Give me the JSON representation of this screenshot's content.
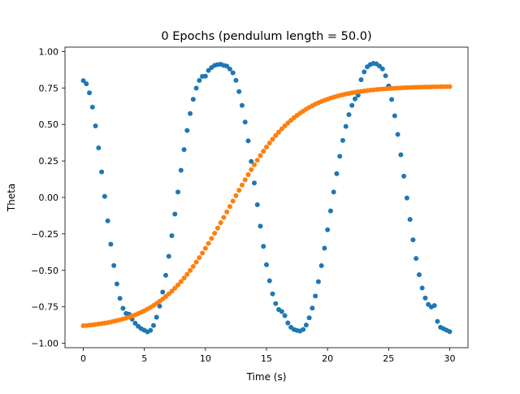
{
  "chart_data": {
    "type": "scatter",
    "title": "0 Epochs (pendulum length = 50.0)",
    "xlabel": "Time (s)",
    "ylabel": "Theta",
    "xlim": [
      -1.5,
      31.5
    ],
    "ylim": [
      -1.03,
      1.03
    ],
    "xticks": [
      0,
      5,
      10,
      15,
      20,
      25,
      30
    ],
    "xtick_labels": [
      "0",
      "5",
      "10",
      "15",
      "20",
      "25",
      "30"
    ],
    "yticks": [
      -1.0,
      -0.75,
      -0.5,
      -0.25,
      0.0,
      0.25,
      0.5,
      0.75,
      1.0
    ],
    "ytick_labels": [
      "−1.00",
      "−0.75",
      "−0.50",
      "−0.25",
      "0.00",
      "0.25",
      "0.50",
      "0.75",
      "1.00"
    ],
    "grid": false,
    "legend": "none",
    "series": [
      {
        "color": "#1f77b4",
        "x": [
          0.0,
          0.25,
          0.5,
          0.75,
          1.0,
          1.25,
          1.5,
          1.75,
          2.0,
          2.25,
          2.5,
          2.75,
          3.0,
          3.25,
          3.5,
          3.75,
          4.0,
          4.25,
          4.5,
          4.75,
          5.0,
          5.25,
          5.5,
          5.75,
          6.0,
          6.25,
          6.5,
          6.75,
          7.0,
          7.25,
          7.5,
          7.75,
          8.0,
          8.25,
          8.5,
          8.75,
          9.0,
          9.25,
          9.5,
          9.75,
          10.0,
          10.25,
          10.5,
          10.75,
          11.0,
          11.25,
          11.5,
          11.75,
          12.0,
          12.25,
          12.5,
          12.75,
          13.0,
          13.25,
          13.5,
          13.75,
          14.0,
          14.25,
          14.5,
          14.75,
          15.0,
          15.25,
          15.5,
          15.75,
          16.0,
          16.25,
          16.5,
          16.75,
          17.0,
          17.25,
          17.5,
          17.75,
          18.0,
          18.25,
          18.5,
          18.75,
          19.0,
          19.25,
          19.5,
          19.75,
          20.0,
          20.25,
          20.5,
          20.75,
          21.0,
          21.25,
          21.5,
          21.75,
          22.0,
          22.25,
          22.5,
          22.75,
          23.0,
          23.25,
          23.5,
          23.75,
          24.0,
          24.25,
          24.5,
          24.75,
          25.0,
          25.25,
          25.5,
          25.75,
          26.0,
          26.25,
          26.5,
          26.75,
          27.0,
          27.25,
          27.5,
          27.75,
          28.0,
          28.25,
          28.5,
          28.75,
          29.0,
          29.25,
          29.5,
          29.75,
          30.0
        ],
        "y": [
          0.8,
          0.7788,
          0.7171,
          0.6189,
          0.4902,
          0.3393,
          0.1749,
          0.0069,
          -0.1605,
          -0.321,
          -0.4673,
          -0.5927,
          -0.6916,
          -0.7599,
          -0.7951,
          -0.8002,
          -0.8343,
          -0.8623,
          -0.8836,
          -0.9,
          -0.91,
          -0.9214,
          -0.9107,
          -0.8779,
          -0.8214,
          -0.7453,
          -0.6486,
          -0.5337,
          -0.4038,
          -0.2626,
          -0.1142,
          0.0369,
          0.1856,
          0.3275,
          0.4585,
          0.5745,
          0.6722,
          0.7487,
          0.8016,
          0.8294,
          0.8312,
          0.87,
          0.89,
          0.905,
          0.91,
          0.9122,
          0.905,
          0.9,
          0.88,
          0.8539,
          0.8021,
          0.7254,
          0.6303,
          0.5166,
          0.3874,
          0.2467,
          0.099,
          -0.0504,
          -0.1967,
          -0.3353,
          -0.4617,
          -0.5715,
          -0.6612,
          -0.7276,
          -0.7685,
          -0.7823,
          -0.8101,
          -0.8601,
          -0.89,
          -0.9051,
          -0.912,
          -0.9159,
          -0.9053,
          -0.8748,
          -0.8254,
          -0.7587,
          -0.6755,
          -0.5778,
          -0.4678,
          -0.3482,
          -0.2219,
          -0.0925,
          0.0369,
          0.1626,
          0.2816,
          0.3906,
          0.4867,
          0.5675,
          0.6307,
          0.6748,
          0.7,
          0.8069,
          0.86,
          0.895,
          0.91,
          0.9184,
          0.915,
          0.9,
          0.8803,
          0.8334,
          0.7632,
          0.6707,
          0.5592,
          0.4318,
          0.2924,
          0.1455,
          -0.0041,
          -0.1511,
          -0.2906,
          -0.4181,
          -0.5295,
          -0.6211,
          -0.6899,
          -0.7336,
          -0.7509,
          -0.7413,
          -0.85,
          -0.89,
          -0.9,
          -0.91,
          -0.9198
        ]
      },
      {
        "color": "#ff7f0e",
        "x": [
          0.0,
          0.25,
          0.5,
          0.75,
          1.0,
          1.25,
          1.5,
          1.75,
          2.0,
          2.25,
          2.5,
          2.75,
          3.0,
          3.25,
          3.5,
          3.75,
          4.0,
          4.25,
          4.5,
          4.75,
          5.0,
          5.25,
          5.5,
          5.75,
          6.0,
          6.25,
          6.5,
          6.75,
          7.0,
          7.25,
          7.5,
          7.75,
          8.0,
          8.25,
          8.5,
          8.75,
          9.0,
          9.25,
          9.5,
          9.75,
          10.0,
          10.25,
          10.5,
          10.75,
          11.0,
          11.25,
          11.5,
          11.75,
          12.0,
          12.25,
          12.5,
          12.75,
          13.0,
          13.25,
          13.5,
          13.75,
          14.0,
          14.25,
          14.5,
          14.75,
          15.0,
          15.25,
          15.5,
          15.75,
          16.0,
          16.25,
          16.5,
          16.75,
          17.0,
          17.25,
          17.5,
          17.75,
          18.0,
          18.25,
          18.5,
          18.75,
          19.0,
          19.25,
          19.5,
          19.75,
          20.0,
          20.25,
          20.5,
          20.75,
          21.0,
          21.25,
          21.5,
          21.75,
          22.0,
          22.25,
          22.5,
          22.75,
          23.0,
          23.25,
          23.5,
          23.75,
          24.0,
          24.25,
          24.5,
          24.75,
          25.0,
          25.25,
          25.5,
          25.75,
          26.0,
          26.25,
          26.5,
          26.75,
          27.0,
          27.25,
          27.5,
          27.75,
          28.0,
          28.25,
          28.5,
          28.75,
          29.0,
          29.25,
          29.5,
          29.75,
          30.0
        ],
        "y": [
          -0.88,
          -0.878,
          -0.8758,
          -0.8734,
          -0.8708,
          -0.868,
          -0.8649,
          -0.8615,
          -0.8578,
          -0.8537,
          -0.8493,
          -0.8445,
          -0.8392,
          -0.8334,
          -0.8272,
          -0.8203,
          -0.8129,
          -0.8049,
          -0.7961,
          -0.7867,
          -0.7765,
          -0.7654,
          -0.7535,
          -0.7407,
          -0.7269,
          -0.7121,
          -0.6963,
          -0.6794,
          -0.6613,
          -0.6421,
          -0.6216,
          -0.5999,
          -0.577,
          -0.5528,
          -0.5273,
          -0.5006,
          -0.4726,
          -0.4434,
          -0.413,
          -0.3815,
          -0.3489,
          -0.3154,
          -0.281,
          -0.2458,
          -0.21,
          -0.1736,
          -0.1368,
          -0.0997,
          -0.0625,
          -0.0252,
          0.0118,
          0.0486,
          0.085,
          0.1207,
          0.1557,
          0.1899,
          0.2232,
          0.2554,
          0.2865,
          0.3165,
          0.3452,
          0.3727,
          0.3988,
          0.4237,
          0.4473,
          0.4696,
          0.4906,
          0.5104,
          0.5289,
          0.5463,
          0.5625,
          0.5776,
          0.5917,
          0.6048,
          0.617,
          0.6283,
          0.6388,
          0.6484,
          0.6574,
          0.6657,
          0.6733,
          0.6804,
          0.6869,
          0.6929,
          0.6984,
          0.7036,
          0.7083,
          0.7126,
          0.7166,
          0.7203,
          0.7237,
          0.7268,
          0.7297,
          0.7323,
          0.7348,
          0.737,
          0.739,
          0.7409,
          0.7427,
          0.7443,
          0.7457,
          0.7471,
          0.7483,
          0.7494,
          0.7505,
          0.7514,
          0.7523,
          0.7531,
          0.7539,
          0.7546,
          0.7552,
          0.7558,
          0.7563,
          0.7568,
          0.7573,
          0.7577,
          0.7581,
          0.7585,
          0.7588,
          0.7591,
          0.7594
        ]
      }
    ]
  }
}
